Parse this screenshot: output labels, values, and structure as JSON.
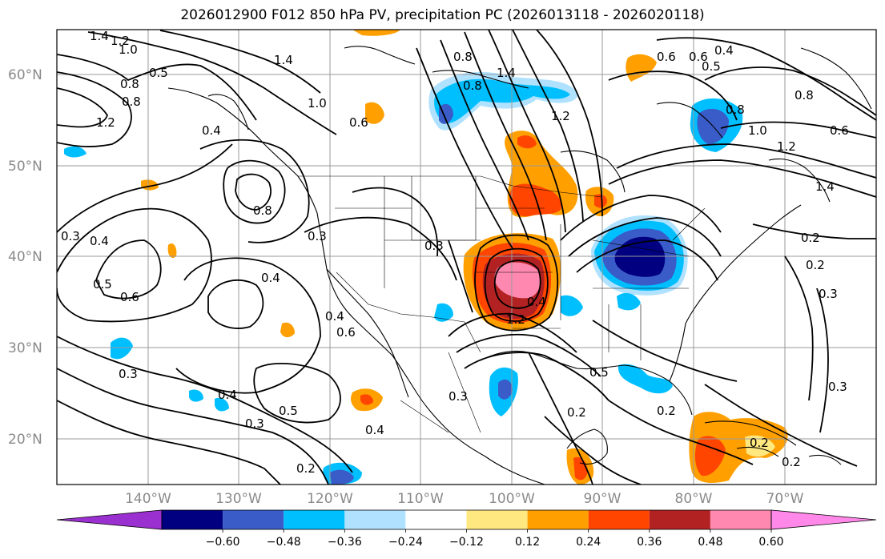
{
  "title": "2026012900 F012 850 hPa PV, precipitation PC (2026013118 - 2026020118)",
  "lat_labels": [
    "60°N",
    "50°N",
    "40°N",
    "30°N",
    "20°N"
  ],
  "lon_labels": [
    "140°W",
    "130°W",
    "120°W",
    "110°W",
    "100°W",
    "90°W",
    "80°W",
    "70°W"
  ],
  "contour_labels": [
    "1.4",
    "1.2",
    "1.0",
    "0.5",
    "0.8",
    "0.8",
    "1.2",
    "0.4",
    "1.4",
    "1.0",
    "0.6",
    "0.8",
    "0.8",
    "1.4",
    "1.2",
    "0.6",
    "0.6",
    "0.4",
    "0.5",
    "0.6",
    "0.8",
    "1.0",
    "1.2",
    "0.8",
    "1.4",
    "0.3",
    "0.4",
    "0.5",
    "0.6",
    "0.3",
    "0.4",
    "0.3",
    "0.8",
    "0.4",
    "0.6",
    "0.2",
    "0.2",
    "0.3",
    "0.3",
    "0.3",
    "0.4",
    "0.5",
    "0.3",
    "0.4",
    "1.2",
    "0.4",
    "0.2",
    "0.2",
    "0.3",
    "0.5",
    "0.2",
    "0.2",
    "0.2"
  ],
  "colorbar": {
    "ticks": [
      "−0.60",
      "−0.48",
      "−0.36",
      "−0.24",
      "−0.12",
      "0.12",
      "0.24",
      "0.36",
      "0.48",
      "0.60"
    ],
    "colors": [
      "#9b30d0",
      "#000080",
      "#3a5cc8",
      "#00bfff",
      "#b0e2ff",
      "#ffffff",
      "#ffe880",
      "#ffa000",
      "#ff4500",
      "#b22222",
      "#ff88b0",
      "#ff88e8"
    ]
  },
  "colors": {
    "strong_negative": "#000080",
    "negative": "#3a5cc8",
    "moderate_negative": "#00bfff",
    "weak_negative": "#b0e2ff",
    "weak_positive": "#ffe880",
    "moderate_positive": "#ffa000",
    "positive": "#ff4500",
    "strong_positive": "#b22222",
    "extreme_positive": "#ff88b0",
    "grid": "#9a9a9a",
    "coast": "#000000"
  }
}
